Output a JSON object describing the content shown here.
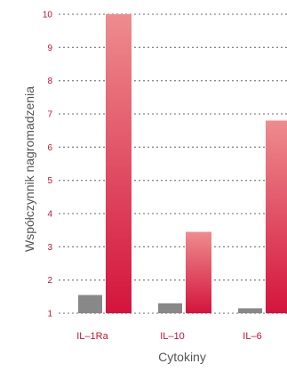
{
  "chart_data": {
    "type": "bar",
    "title": "",
    "xlabel": "Cytokiny",
    "ylabel": "Współczynnik nagromadzenia",
    "categories": [
      "IL–1Ra",
      "IL–10",
      "IL–6"
    ],
    "series": [
      {
        "values": [
          1.55,
          1.3,
          1.15
        ],
        "color": "#888888"
      },
      {
        "values": [
          10.0,
          3.45,
          6.8
        ],
        "color_top": "#ee8c8e",
        "color_bottom": "#d4143c"
      }
    ],
    "ylim": [
      1,
      10
    ],
    "yticks": [
      1,
      2,
      3,
      4,
      5,
      6,
      7,
      8,
      9,
      10
    ],
    "grid": true,
    "grid_style": "dotted",
    "legend": false
  }
}
